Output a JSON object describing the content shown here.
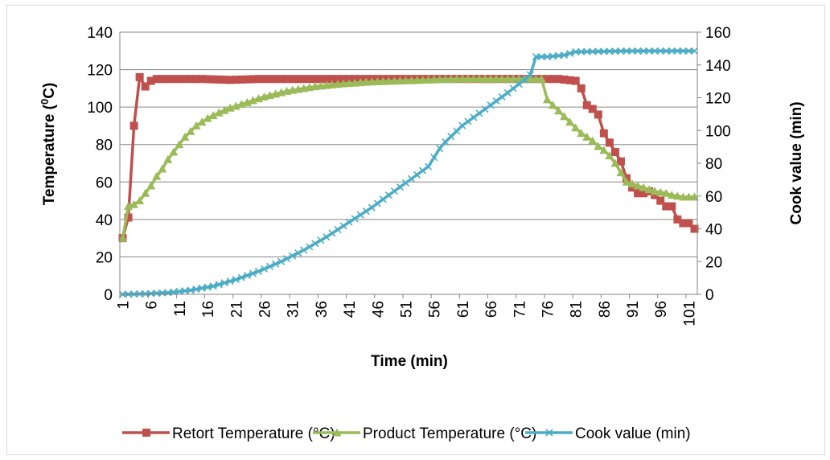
{
  "chart_data": {
    "type": "line",
    "xlabel": "Time (min)",
    "ylabel_left": "Temperature (",
    "ylabel_left_sup": "0",
    "ylabel_left_end": "C)",
    "ylabel_right": "Cook value (min)",
    "ylim_left": [
      0,
      140
    ],
    "ylim_right": [
      0,
      160
    ],
    "yticks_left": [
      "0",
      "20",
      "40",
      "60",
      "80",
      "100",
      "120",
      "140"
    ],
    "yticks_right": [
      "0",
      "20",
      "40",
      "60",
      "80",
      "100",
      "120",
      "140",
      "160"
    ],
    "xrange": [
      1,
      102
    ],
    "xtick_labels": [
      "1",
      "6",
      "11",
      "16",
      "21",
      "26",
      "31",
      "36",
      "41",
      "46",
      "51",
      "56",
      "61",
      "66",
      "71",
      "76",
      "81",
      "86",
      "91",
      "96",
      "101"
    ],
    "grid": "horizontal",
    "legend_position": "bottom",
    "series": [
      {
        "name": "Retort Temperature (°C)",
        "axis": "left",
        "color": "#c0504d",
        "marker": "square",
        "points": [
          [
            1,
            30
          ],
          [
            2,
            41
          ],
          [
            3,
            90
          ],
          [
            4,
            116
          ],
          [
            5,
            111
          ],
          [
            6,
            114
          ],
          [
            7,
            115
          ],
          [
            15,
            115
          ],
          [
            20,
            114.5
          ],
          [
            25,
            115
          ],
          [
            75,
            115
          ],
          [
            78,
            115
          ],
          [
            81,
            114
          ],
          [
            82,
            110
          ],
          [
            83,
            101
          ],
          [
            84,
            99
          ],
          [
            85,
            96
          ],
          [
            86,
            86
          ],
          [
            87,
            81
          ],
          [
            88,
            76
          ],
          [
            89,
            71
          ],
          [
            90,
            62
          ],
          [
            91,
            57
          ],
          [
            92,
            54
          ],
          [
            93,
            54
          ],
          [
            94,
            55
          ],
          [
            95,
            53
          ],
          [
            96,
            50
          ],
          [
            97,
            47
          ],
          [
            98,
            47
          ],
          [
            99,
            40
          ],
          [
            100,
            38
          ],
          [
            101,
            38
          ],
          [
            102,
            35
          ]
        ]
      },
      {
        "name": "Product Temperature (°C)",
        "axis": "left",
        "color": "#9bbb59",
        "marker": "triangle",
        "points": [
          [
            1,
            30
          ],
          [
            2,
            47
          ],
          [
            3,
            48
          ],
          [
            4,
            50
          ],
          [
            5,
            54
          ],
          [
            6,
            58
          ],
          [
            7,
            63
          ],
          [
            8,
            67
          ],
          [
            9,
            72
          ],
          [
            10,
            76
          ],
          [
            11,
            80
          ],
          [
            12,
            84
          ],
          [
            13,
            87
          ],
          [
            14,
            90
          ],
          [
            15,
            92
          ],
          [
            16,
            94
          ],
          [
            18,
            97
          ],
          [
            20,
            99.5
          ],
          [
            22,
            101.5
          ],
          [
            24,
            103.5
          ],
          [
            26,
            105.5
          ],
          [
            28,
            107
          ],
          [
            30,
            108.5
          ],
          [
            35,
            111
          ],
          [
            40,
            112.5
          ],
          [
            45,
            113.5
          ],
          [
            50,
            114
          ],
          [
            55,
            114.5
          ],
          [
            60,
            115
          ],
          [
            70,
            115
          ],
          [
            74,
            115
          ],
          [
            75,
            115
          ],
          [
            76,
            104
          ],
          [
            77,
            101
          ],
          [
            78,
            98
          ],
          [
            79,
            95
          ],
          [
            80,
            92
          ],
          [
            81,
            89
          ],
          [
            82,
            86
          ],
          [
            83,
            84
          ],
          [
            84,
            82
          ],
          [
            85,
            79
          ],
          [
            86,
            77
          ],
          [
            87,
            74
          ],
          [
            88,
            70
          ],
          [
            89,
            65
          ],
          [
            90,
            60
          ],
          [
            91,
            59
          ],
          [
            92,
            58
          ],
          [
            93,
            57
          ],
          [
            94,
            56
          ],
          [
            95,
            55
          ],
          [
            96,
            54.5
          ],
          [
            97,
            54
          ],
          [
            98,
            53
          ],
          [
            99,
            52.5
          ],
          [
            100,
            52
          ],
          [
            101,
            52
          ],
          [
            102,
            52
          ]
        ]
      },
      {
        "name": "Cook value (min)",
        "axis": "right",
        "color": "#4bacc6",
        "marker": "x",
        "points": [
          [
            1,
            0
          ],
          [
            5,
            0.3
          ],
          [
            9,
            1
          ],
          [
            13,
            2.5
          ],
          [
            17,
            5
          ],
          [
            21,
            9
          ],
          [
            25,
            14
          ],
          [
            29,
            20
          ],
          [
            33,
            27
          ],
          [
            37,
            35
          ],
          [
            41,
            44
          ],
          [
            45,
            53
          ],
          [
            49,
            63
          ],
          [
            53,
            73
          ],
          [
            55,
            78
          ],
          [
            57,
            89
          ],
          [
            58,
            93
          ],
          [
            61,
            103
          ],
          [
            65,
            113
          ],
          [
            69,
            123
          ],
          [
            72,
            131
          ],
          [
            73,
            134
          ],
          [
            74,
            145
          ],
          [
            75,
            145
          ],
          [
            76,
            145
          ],
          [
            79,
            146
          ],
          [
            80,
            147
          ],
          [
            81,
            148
          ],
          [
            90,
            148.5
          ],
          [
            102,
            148.5
          ]
        ]
      }
    ]
  }
}
